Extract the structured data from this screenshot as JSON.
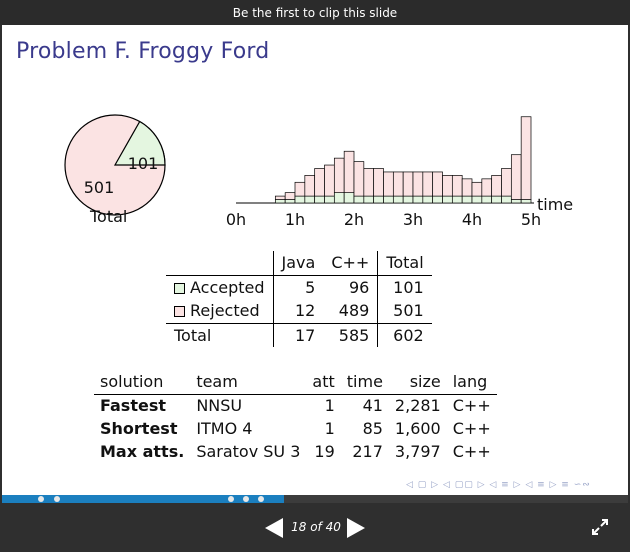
{
  "topbar": {
    "clip_text": "Be the first to clip this slide"
  },
  "slide": {
    "title": "Problem F. Froggy Ford",
    "pie": {
      "caption": "Total",
      "accepted": 101,
      "rejected": 501,
      "accepted_color": "#e4f6e0",
      "rejected_color": "#fbe3e3"
    },
    "histogram": {
      "x_labels": [
        "0h",
        "1h",
        "2h",
        "3h",
        "4h",
        "5h"
      ],
      "x_axis_label": "time",
      "accepted_color": "#e4f6e0",
      "rejected_color": "#fbe3e3"
    },
    "stats": {
      "headers": [
        "Java",
        "C++",
        "Total"
      ],
      "rows": [
        {
          "label": "Accepted",
          "java": "5",
          "cpp": "96",
          "total": "101"
        },
        {
          "label": "Rejected",
          "java": "12",
          "cpp": "489",
          "total": "501"
        }
      ],
      "total_row": {
        "label": "Total",
        "java": "17",
        "cpp": "585",
        "total": "602"
      }
    },
    "records": {
      "headers": [
        "solution",
        "team",
        "att",
        "time",
        "size",
        "lang"
      ],
      "rows": [
        {
          "label": "Fastest",
          "team": "NNSU",
          "att": "1",
          "time": "41",
          "size": "2,281",
          "lang": "C++"
        },
        {
          "label": "Shortest",
          "team": "ITMO 4",
          "att": "1",
          "time": "85",
          "size": "1,600",
          "lang": "C++"
        },
        {
          "label": "Max atts.",
          "team": "Saratov SU 3",
          "att": "19",
          "time": "217",
          "size": "3,797",
          "lang": "C++"
        }
      ]
    }
  },
  "chart_data": {
    "type": "bar",
    "stacked": true,
    "x_unit_labels": [
      "0h",
      "1h",
      "2h",
      "3h",
      "4h",
      "5h"
    ],
    "xlabel": "time",
    "bins_per_hour": 6,
    "series": [
      {
        "values": [
          0,
          0,
          0,
          0,
          1,
          1,
          2,
          2,
          2,
          2,
          3,
          3,
          2,
          2,
          2,
          2,
          2,
          2,
          2,
          2,
          2,
          2,
          2,
          2,
          2,
          2,
          2,
          2,
          1,
          1
        ]
      },
      {
        "values": [
          0,
          0,
          0,
          0,
          1,
          2,
          4,
          6,
          8,
          9,
          10,
          12,
          10,
          8,
          8,
          7,
          7,
          7,
          7,
          7,
          7,
          6,
          6,
          5,
          4,
          5,
          6,
          8,
          13,
          24
        ]
      }
    ]
  },
  "progress": {
    "fraction": 0.45
  },
  "controls": {
    "page_label": "18 of 40"
  }
}
